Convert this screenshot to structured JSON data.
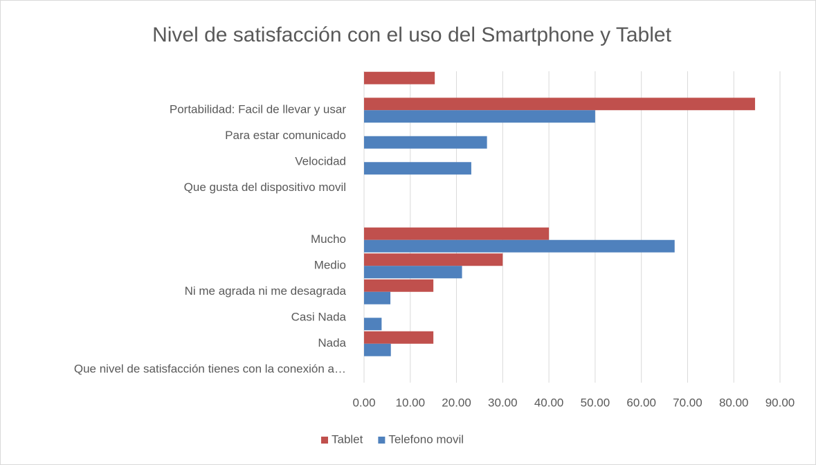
{
  "chart_data": {
    "type": "hbar",
    "title": "Nivel de satisfacción con el uso del Smartphone y Tablet",
    "categories": [
      null,
      "Portabilidad: Facil de llevar y usar",
      "Para estar comunicado ",
      "Velocidad ",
      "Que gusta del dispositivo movil",
      null,
      "Mucho",
      "Medio ",
      "Ni me agrada ni me desagrada ",
      "Casi Nada",
      "Nada",
      "Que nivel de satisfacción tienes con la conexión a…"
    ],
    "series": [
      {
        "name": "Tablet",
        "color": "#c0504d",
        "values": [
          15.3,
          84.6,
          null,
          null,
          null,
          null,
          40,
          30,
          15,
          null,
          15,
          null
        ]
      },
      {
        "name": "Telefono movil",
        "color": "#4f81bd",
        "values": [
          null,
          50,
          26.6,
          23.2,
          null,
          null,
          67.2,
          21.2,
          5.7,
          3.8,
          5.8,
          null
        ]
      }
    ],
    "xlim": [
      0,
      90
    ],
    "xticks": [
      {
        "value": 0,
        "label": "0.00"
      },
      {
        "value": 10,
        "label": "10.00"
      },
      {
        "value": 20,
        "label": "20.00"
      },
      {
        "value": 30,
        "label": "30.00"
      },
      {
        "value": 40,
        "label": "40.00"
      },
      {
        "value": 50,
        "label": "50.00"
      },
      {
        "value": 60,
        "label": "60.00"
      },
      {
        "value": 70,
        "label": "70.00"
      },
      {
        "value": 80,
        "label": "80.00"
      },
      {
        "value": 90,
        "label": "90.00"
      }
    ],
    "grid": true,
    "legend": "bottom"
  }
}
